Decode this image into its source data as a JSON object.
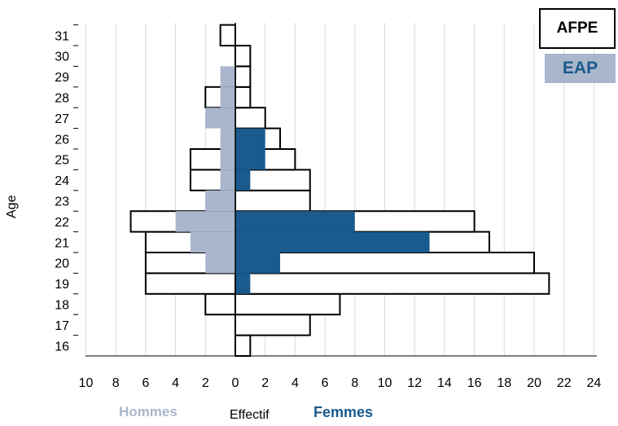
{
  "chart_data": {
    "type": "population-pyramid",
    "title": "",
    "xlabel": "Effectif",
    "ylabel": "Age",
    "left_side_label": "Hommes",
    "right_side_label": "Femmes",
    "ages": [
      16,
      17,
      18,
      19,
      20,
      21,
      22,
      23,
      24,
      25,
      26,
      27,
      28,
      29,
      30,
      31
    ],
    "x_ticks_left": [
      10,
      8,
      6,
      4,
      2
    ],
    "x_ticks_right": [
      0,
      2,
      4,
      6,
      8,
      10,
      12,
      14,
      16,
      18,
      20,
      22,
      24
    ],
    "xlim_left": [
      0,
      10
    ],
    "xlim_right": [
      0,
      24
    ],
    "grid": true,
    "legend_position": "top-right",
    "series": [
      {
        "name": "AFPE",
        "side": "hommes",
        "style": "outline",
        "values": [
          0,
          0,
          2,
          6,
          6,
          6,
          7,
          0,
          3,
          3,
          0,
          0,
          2,
          0,
          0,
          1
        ]
      },
      {
        "name": "AFPE",
        "side": "femmes",
        "style": "outline",
        "values": [
          1,
          5,
          7,
          21,
          20,
          17,
          16,
          5,
          5,
          4,
          3,
          2,
          1,
          1,
          1,
          0
        ]
      },
      {
        "name": "EAP",
        "side": "hommes",
        "style": "filled",
        "values": [
          0,
          0,
          0,
          0,
          2,
          3,
          4,
          2,
          1,
          1,
          1,
          2,
          1,
          1,
          0,
          0
        ]
      },
      {
        "name": "EAP",
        "side": "femmes",
        "style": "filled",
        "values": [
          0,
          0,
          0,
          1,
          3,
          13,
          8,
          0,
          1,
          2,
          2,
          0,
          0,
          0,
          0,
          0
        ]
      }
    ],
    "legend": [
      {
        "label": "AFPE",
        "style": "outline"
      },
      {
        "label": "EAP",
        "style": "filled"
      }
    ],
    "colors": {
      "eap_hommes": "#a9b6cc",
      "eap_femmes": "#1a5a8c",
      "outline": "#000000",
      "grid": "#d9d9d9",
      "legend_eap_bg": "#a9b6cc",
      "hommes_text": "#a9b6cc",
      "femmes_text": "#1a5a8c"
    }
  }
}
